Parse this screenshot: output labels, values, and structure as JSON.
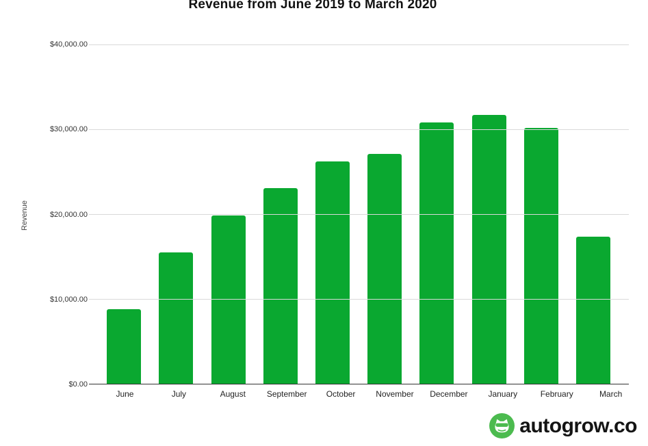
{
  "chart_data": {
    "type": "bar",
    "title": "Revenue from June 2019 to March 2020",
    "xlabel": "",
    "ylabel": "Revenue",
    "categories": [
      "June",
      "July",
      "August",
      "September",
      "October",
      "November",
      "December",
      "January",
      "February",
      "March"
    ],
    "values": [
      8800,
      15500,
      19800,
      23100,
      26200,
      27100,
      30800,
      31700,
      30200,
      17300
    ],
    "ylim": [
      0,
      40000
    ],
    "ytick_interval": 10000,
    "ytick_labels": [
      "$0.00",
      "$10,000.00",
      "$20,000.00",
      "$30,000.00",
      "$40,000.00"
    ],
    "grid": "horizontal-major-only",
    "legend": "none",
    "bar_color": "#0aa830",
    "gridline_color": "#d9d9d9",
    "axis_line_color": "#333333"
  },
  "branding": {
    "logo_text": "autogrow.co",
    "logo_icon": "autogrow-mascot-icon",
    "logo_green": "#4cbb4f",
    "logo_text_color": "#141414"
  }
}
